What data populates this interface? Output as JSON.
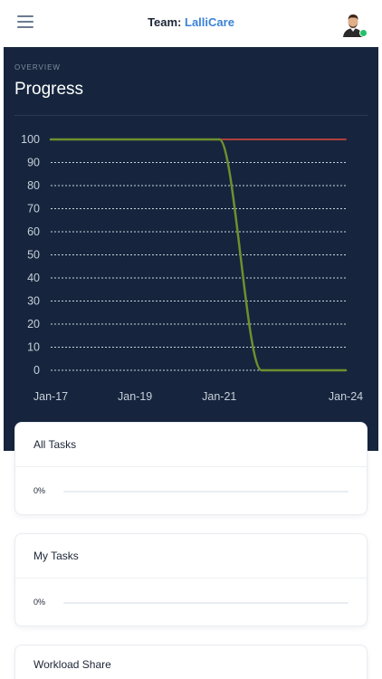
{
  "header": {
    "team_prefix": "Team:",
    "team_name": "LalliCare",
    "menu_icon": "hamburger-icon",
    "avatar_icon": "user-avatar",
    "status_color": "#21c268"
  },
  "overview": {
    "label": "OVERVIEW",
    "title": "Progress"
  },
  "chart_data": {
    "type": "line",
    "y_ticks": [
      100,
      90,
      80,
      70,
      60,
      50,
      40,
      30,
      20,
      10,
      0
    ],
    "x_ticks": [
      "Jan-17",
      "Jan-19",
      "Jan-21",
      "Jan-24"
    ],
    "ylim": [
      0,
      100
    ],
    "grid": true,
    "series": [
      {
        "color": "#e04a3c",
        "points": [
          [
            "Jan-17",
            100
          ],
          [
            "Jan-24",
            100
          ]
        ]
      },
      {
        "color": "#6f8f2f",
        "points": [
          [
            "Jan-17",
            100
          ],
          [
            "Jan-21",
            100
          ],
          [
            "Jan-22",
            0
          ],
          [
            "Jan-24",
            0
          ]
        ]
      }
    ]
  },
  "cards": [
    {
      "title": "All Tasks",
      "percent_label": "0%",
      "percent": 0
    },
    {
      "title": "My Tasks",
      "percent_label": "0%",
      "percent": 0
    },
    {
      "title": "Workload Share"
    }
  ],
  "colors": {
    "panel_bg": "#16253d",
    "accent": "#3b82d6"
  }
}
